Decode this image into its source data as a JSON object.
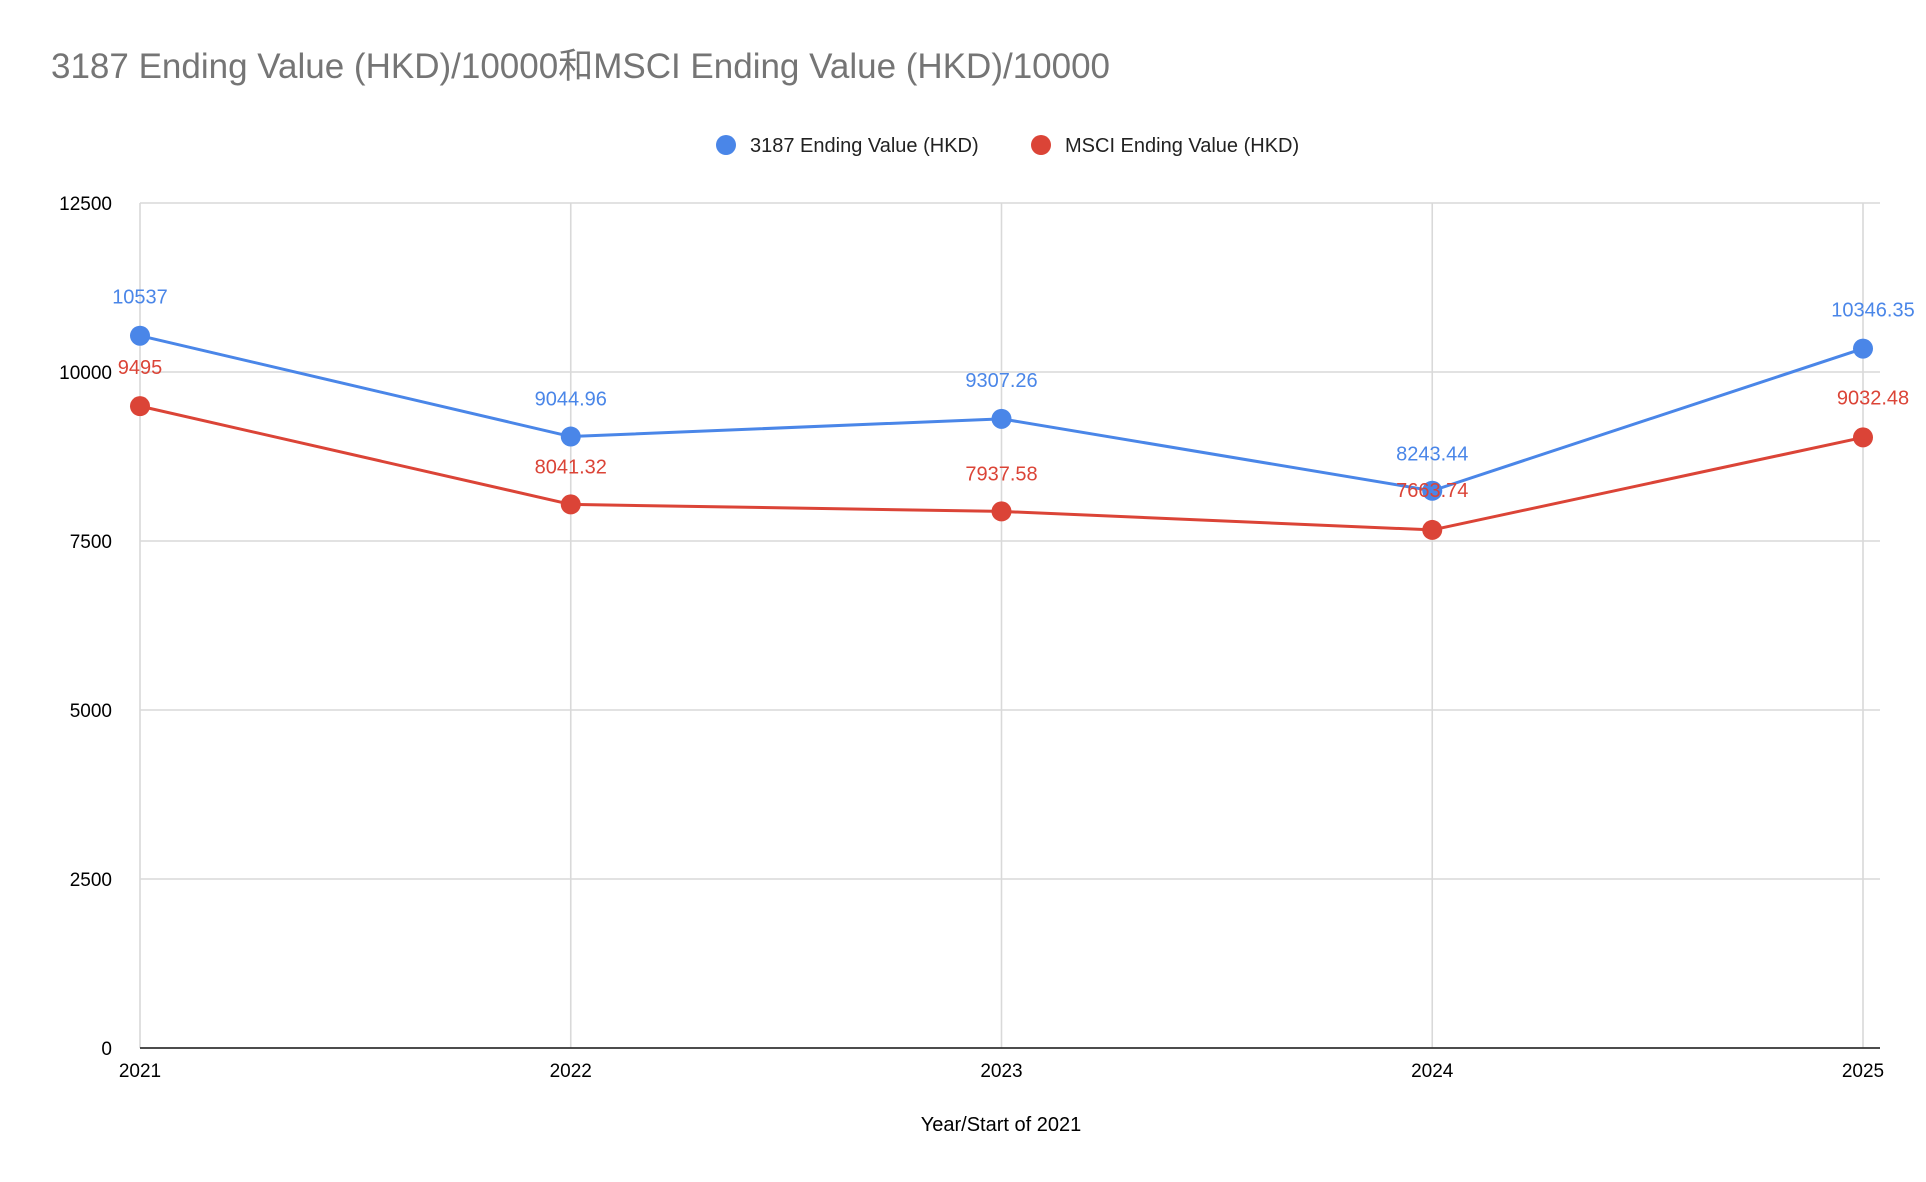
{
  "chart_data": {
    "type": "line",
    "title": "3187 Ending Value (HKD)/10000和MSCI Ending Value (HKD)/10000",
    "xlabel": "Year/Start of 2021",
    "ylabel": "",
    "categories": [
      "2021",
      "2022",
      "2023",
      "2024",
      "2025"
    ],
    "ylim": [
      0,
      12500
    ],
    "yticks": [
      0,
      2500,
      5000,
      7500,
      10000,
      12500
    ],
    "grid": true,
    "legend_position": "top",
    "series": [
      {
        "name": "3187 Ending Value (HKD)",
        "color": "#4a86e8",
        "values": [
          10537,
          9044.96,
          9307.26,
          8243.44,
          10346.35
        ],
        "labels": [
          "10537",
          "9044.96",
          "9307.26",
          "8243.44",
          "10346.35"
        ]
      },
      {
        "name": "MSCI Ending Value (HKD)",
        "color": "#db4437",
        "values": [
          9495,
          8041.32,
          7937.58,
          7663.74,
          9032.48
        ],
        "labels": [
          "9495",
          "8041.32",
          "7937.58",
          "7663.74",
          "9032.48"
        ]
      }
    ]
  }
}
